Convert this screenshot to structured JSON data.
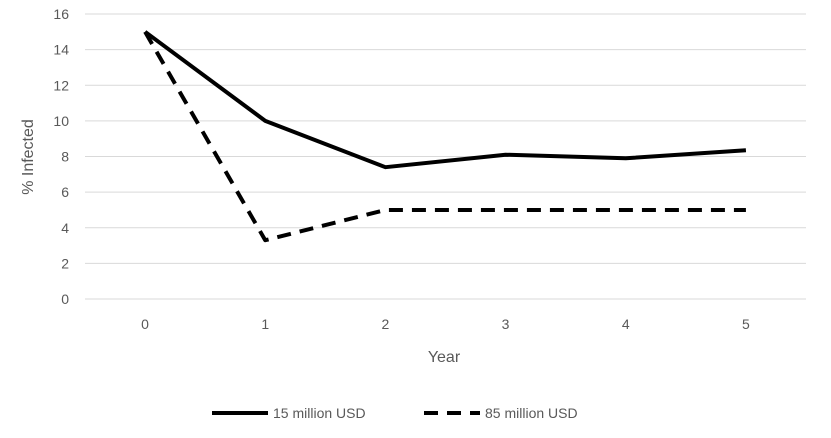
{
  "chart_data": {
    "type": "line",
    "title": "",
    "xlabel": "Year",
    "ylabel": "% Infected",
    "x": [
      0,
      1,
      2,
      3,
      4,
      5
    ],
    "ylim": [
      0,
      16
    ],
    "yticks": [
      0,
      2,
      4,
      6,
      8,
      10,
      12,
      14,
      16
    ],
    "xticks": [
      "0",
      "1",
      "2",
      "3",
      "4",
      "5"
    ],
    "grid": true,
    "legend_position": "bottom",
    "series": [
      {
        "name": "15 million USD",
        "values": [
          15,
          10,
          7.4,
          8.1,
          7.9,
          8.35
        ],
        "style": "solid",
        "color": "#000000"
      },
      {
        "name": "85 million USD",
        "values": [
          15,
          3.3,
          5,
          5,
          5,
          5
        ],
        "style": "dashed",
        "color": "#000000"
      }
    ],
    "colors": {
      "gridline": "#d9d9d9",
      "text": "#595959"
    }
  }
}
